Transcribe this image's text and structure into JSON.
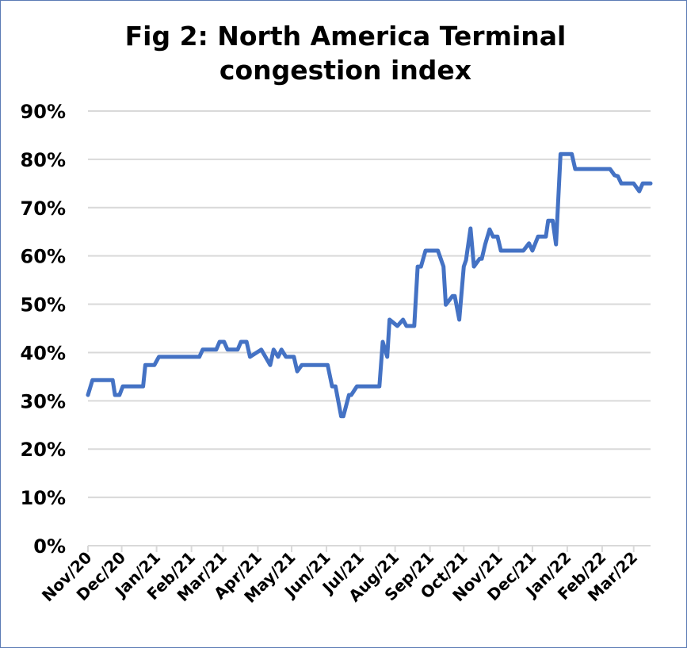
{
  "chart_data": {
    "type": "line",
    "title_lines": [
      "Fig 2: North America Terminal",
      "congestion index"
    ],
    "xlabel": "",
    "ylabel": "",
    "ylim": [
      0,
      0.9
    ],
    "yticks": [
      {
        "value": 0,
        "label": "0%"
      },
      {
        "value": 0.1,
        "label": "10%"
      },
      {
        "value": 0.2,
        "label": "20%"
      },
      {
        "value": 0.3,
        "label": "30%"
      },
      {
        "value": 0.4,
        "label": "40%"
      },
      {
        "value": 0.5,
        "label": "50%"
      },
      {
        "value": 0.6,
        "label": "60%"
      },
      {
        "value": 0.7,
        "label": "70%"
      },
      {
        "value": 0.8,
        "label": "80%"
      },
      {
        "value": 0.9,
        "label": "90%"
      }
    ],
    "xlim": [
      "2020-11-01",
      "2022-03-16"
    ],
    "xticks": [
      {
        "date": "2020-11-01",
        "label": "Nov/20"
      },
      {
        "date": "2020-12-01",
        "label": "Dec/20"
      },
      {
        "date": "2021-01-01",
        "label": "Jan/21"
      },
      {
        "date": "2021-02-01",
        "label": "Feb/21"
      },
      {
        "date": "2021-03-01",
        "label": "Mar/21"
      },
      {
        "date": "2021-04-01",
        "label": "Apr/21"
      },
      {
        "date": "2021-05-01",
        "label": "May/21"
      },
      {
        "date": "2021-06-01",
        "label": "Jun/21"
      },
      {
        "date": "2021-07-01",
        "label": "Jul/21"
      },
      {
        "date": "2021-08-01",
        "label": "Aug/21"
      },
      {
        "date": "2021-09-01",
        "label": "Sep/21"
      },
      {
        "date": "2021-10-01",
        "label": "Oct/21"
      },
      {
        "date": "2021-11-01",
        "label": "Nov/21"
      },
      {
        "date": "2021-12-01",
        "label": "Dec/21"
      },
      {
        "date": "2022-01-01",
        "label": "Jan/22"
      },
      {
        "date": "2022-02-01",
        "label": "Feb/22"
      },
      {
        "date": "2022-03-01",
        "label": "Mar/22"
      }
    ],
    "grid": {
      "horizontal": true,
      "vertical": false
    },
    "legend": "none",
    "series": [
      {
        "color": "#4472c4",
        "x": [
          "2020-11-01",
          "2020-11-05",
          "2020-11-23",
          "2020-11-25",
          "2020-11-29",
          "2020-12-02",
          "2020-12-20",
          "2020-12-22",
          "2020-12-30",
          "2021-01-03",
          "2021-02-08",
          "2021-02-11",
          "2021-02-23",
          "2021-02-26",
          "2021-03-02",
          "2021-03-05",
          "2021-03-14",
          "2021-03-17",
          "2021-03-22",
          "2021-03-25",
          "2021-04-04",
          "2021-04-12",
          "2021-04-15",
          "2021-04-19",
          "2021-04-22",
          "2021-04-26",
          "2021-05-03",
          "2021-05-06",
          "2021-05-10",
          "2021-06-02",
          "2021-06-06",
          "2021-06-09",
          "2021-06-14",
          "2021-06-16",
          "2021-06-21",
          "2021-06-23",
          "2021-06-28",
          "2021-07-18",
          "2021-07-21",
          "2021-07-25",
          "2021-07-27",
          "2021-08-03",
          "2021-08-08",
          "2021-08-11",
          "2021-08-18",
          "2021-08-21",
          "2021-08-24",
          "2021-08-28",
          "2021-09-08",
          "2021-09-13",
          "2021-09-15",
          "2021-09-21",
          "2021-09-23",
          "2021-09-27",
          "2021-10-01",
          "2021-10-03",
          "2021-10-07",
          "2021-10-10",
          "2021-10-15",
          "2021-10-17",
          "2021-10-20",
          "2021-10-24",
          "2021-10-27",
          "2021-10-31",
          "2021-11-03",
          "2021-11-23",
          "2021-11-28",
          "2021-12-01",
          "2021-12-06",
          "2021-12-13",
          "2021-12-15",
          "2021-12-19",
          "2021-12-22",
          "2021-12-26",
          "2022-01-05",
          "2022-01-08",
          "2022-02-08",
          "2022-02-12",
          "2022-02-15",
          "2022-02-18",
          "2022-03-01",
          "2022-03-06",
          "2022-03-09",
          "2022-03-16"
        ],
        "y": [
          0.312,
          0.343,
          0.343,
          0.312,
          0.312,
          0.33,
          0.33,
          0.374,
          0.374,
          0.391,
          0.391,
          0.406,
          0.406,
          0.422,
          0.422,
          0.406,
          0.406,
          0.422,
          0.422,
          0.391,
          0.406,
          0.374,
          0.406,
          0.391,
          0.406,
          0.391,
          0.391,
          0.361,
          0.374,
          0.374,
          0.33,
          0.33,
          0.268,
          0.268,
          0.312,
          0.312,
          0.33,
          0.33,
          0.422,
          0.391,
          0.468,
          0.455,
          0.468,
          0.455,
          0.455,
          0.578,
          0.578,
          0.611,
          0.611,
          0.578,
          0.499,
          0.517,
          0.517,
          0.468,
          0.578,
          0.591,
          0.657,
          0.578,
          0.594,
          0.594,
          0.624,
          0.655,
          0.64,
          0.64,
          0.611,
          0.611,
          0.626,
          0.611,
          0.64,
          0.64,
          0.673,
          0.673,
          0.624,
          0.811,
          0.811,
          0.78,
          0.78,
          0.767,
          0.765,
          0.75,
          0.75,
          0.734,
          0.75,
          0.75
        ]
      }
    ]
  }
}
